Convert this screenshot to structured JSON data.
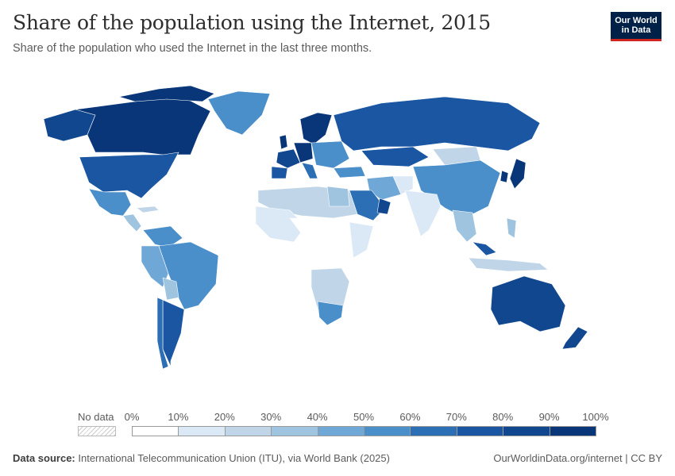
{
  "header": {
    "title": "Share of the population using the Internet, 2015",
    "subtitle": "Share of the population who used the Internet in the last three months."
  },
  "logo": {
    "line1": "Our World",
    "line2": "in Data"
  },
  "legend": {
    "no_data_label": "No data",
    "ticks": [
      "0%",
      "10%",
      "20%",
      "30%",
      "40%",
      "50%",
      "60%",
      "70%",
      "80%",
      "90%",
      "100%"
    ],
    "colors": [
      "#ffffff",
      "#dbe8f5",
      "#c0d5e8",
      "#9ec4e0",
      "#6fa8d6",
      "#4b8fca",
      "#2d6fb4",
      "#1a56a2",
      "#10478f",
      "#083679"
    ]
  },
  "footer": {
    "source_label": "Data source:",
    "source_text": "International Telecommunication Union (ITU), via World Bank (2025)",
    "credit": "OurWorldinData.org/internet | CC BY"
  }
}
